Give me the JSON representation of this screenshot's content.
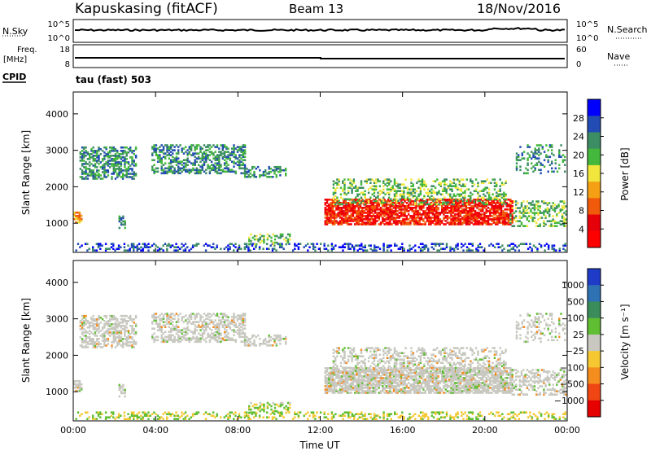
{
  "header": {
    "site": "Kapuskasing (fitACF)",
    "beam": "Beam 13",
    "date": "18/Nov/2016"
  },
  "status_panels": {
    "nsky_label": "N.Sky",
    "nsky_ticks": [
      "10^5",
      "10^0"
    ],
    "nsearch_label": "N.Search",
    "nsearch_ticks": [
      "10^5",
      "10^0"
    ],
    "freq_label": "Freq.",
    "freq_unit": "[MHz]",
    "freq_ticks": [
      "18",
      "8"
    ],
    "nave_label": "Nave",
    "nave_ticks": [
      "60",
      "0"
    ],
    "cpid_label": "CPID",
    "cpid_value": "tau (fast) 503"
  },
  "chart_data": [
    {
      "type": "heatmap",
      "name": "power",
      "ylabel": "Slant Range [km]",
      "ylim": [
        200,
        4600
      ],
      "yticks": [
        "4000",
        "3000",
        "2000",
        "1000"
      ],
      "colorbar_label": "Power [dB]",
      "colorbar_ticks": [
        "28",
        "24",
        "20",
        "16",
        "12",
        "8",
        "4"
      ],
      "colors": [
        "#0000ff",
        "#224bb4",
        "#3c8c64",
        "#44b83c",
        "#f0e63c",
        "#f5a014",
        "#f05a0a",
        "#e6000a",
        "#ff0000"
      ]
    },
    {
      "type": "heatmap",
      "name": "velocity",
      "ylabel": "Slant Range [km]",
      "ylim": [
        200,
        4600
      ],
      "yticks": [
        "4000",
        "3000",
        "2000",
        "1000"
      ],
      "colorbar_label": "Velocity [m s⁻¹]",
      "colorbar_ticks": [
        "1000",
        "500",
        "100",
        "25",
        "−25",
        "−100",
        "−500",
        "−1000"
      ],
      "colors": [
        "#1e3cc8",
        "#2e72b4",
        "#3a8c5a",
        "#5fbe32",
        "#c8c8c0",
        "#f5c832",
        "#f58c1e",
        "#f04614",
        "#e60000"
      ]
    }
  ],
  "x_axis": {
    "label": "Time UT",
    "ticks": [
      "00:00",
      "04:00",
      "08:00",
      "12:00",
      "16:00",
      "20:00",
      "00:00"
    ]
  }
}
